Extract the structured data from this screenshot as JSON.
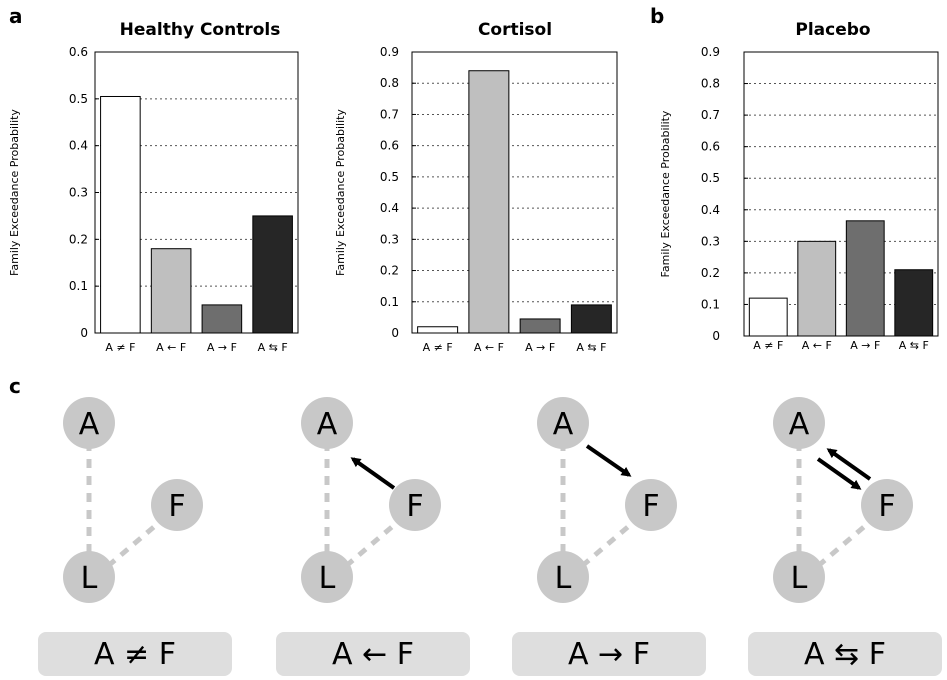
{
  "panels": {
    "a": "a",
    "b": "b",
    "c": "c"
  },
  "chart_data": [
    {
      "type": "bar",
      "title": "Healthy Controls",
      "ylabel": "Family Exceedance Probability",
      "xlabel": "",
      "categories": [
        "A ≠ F",
        "A ← F",
        "A → F",
        "A ⇆ F"
      ],
      "values": [
        0.505,
        0.18,
        0.06,
        0.25
      ],
      "ylim": [
        0,
        0.6
      ],
      "yticks": [
        0,
        0.1,
        0.2,
        0.3,
        0.4,
        0.5,
        0.6
      ],
      "grid": true,
      "colors": [
        "#ffffff",
        "#bfbfbf",
        "#6e6e6e",
        "#262626"
      ]
    },
    {
      "type": "bar",
      "title": "Cortisol",
      "ylabel": "Family Exceedance Probability",
      "xlabel": "",
      "categories": [
        "A ≠ F",
        "A ← F",
        "A → F",
        "A ⇆ F"
      ],
      "values": [
        0.02,
        0.84,
        0.045,
        0.09
      ],
      "ylim": [
        0,
        0.9
      ],
      "yticks": [
        0,
        0.1,
        0.2,
        0.3,
        0.4,
        0.5,
        0.6,
        0.7,
        0.8,
        0.9
      ],
      "grid": true,
      "colors": [
        "#ffffff",
        "#bfbfbf",
        "#6e6e6e",
        "#262626"
      ]
    },
    {
      "type": "bar",
      "title": "Placebo",
      "ylabel": "Family Exceedance Probability",
      "xlabel": "",
      "categories": [
        "A ≠ F",
        "A ← F",
        "A → F",
        "A ⇆ F"
      ],
      "values": [
        0.12,
        0.3,
        0.365,
        0.21
      ],
      "ylim": [
        0,
        0.9
      ],
      "yticks": [
        0,
        0.1,
        0.2,
        0.3,
        0.4,
        0.5,
        0.6,
        0.7,
        0.8,
        0.9
      ],
      "grid": true,
      "colors": [
        "#ffffff",
        "#bfbfbf",
        "#6e6e6e",
        "#262626"
      ]
    }
  ],
  "diagram": {
    "nodes": {
      "a": "A",
      "f": "F",
      "l": "L"
    },
    "models": [
      "A ≠ F",
      "A ← F",
      "A → F",
      "A ⇆ F"
    ],
    "node_color": "#c8c8c8",
    "label_bg": "#dedede"
  }
}
